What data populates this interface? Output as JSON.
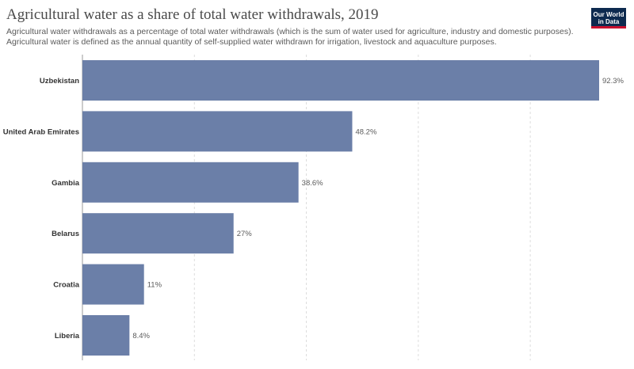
{
  "header": {
    "title": "Agricultural water as a share of total water withdrawals, 2019",
    "subtitle": "Agricultural water withdrawals as a percentage of total water withdrawals (which is the sum of water used for agriculture, industry and domestic purposes). Agricultural water is defined as the annual quantity of self-supplied water withdrawn for irrigation, livestock and aquaculture purposes.",
    "logo_line1": "Our World",
    "logo_line2": "in Data"
  },
  "colors": {
    "bar": "#6b7fa8",
    "grid": "#dddddd",
    "logo_bg": "#0d2a4f",
    "logo_accent": "#c8102e"
  },
  "chart_data": {
    "type": "bar",
    "orientation": "horizontal",
    "categories": [
      "Uzbekistan",
      "United Arab Emirates",
      "Gambia",
      "Belarus",
      "Croatia",
      "Liberia"
    ],
    "values": [
      92.3,
      48.2,
      38.6,
      27,
      11,
      8.4
    ],
    "value_labels": [
      "92.3%",
      "48.2%",
      "38.6%",
      "27%",
      "11%",
      "8.4%"
    ],
    "xlim": [
      0,
      92.3
    ],
    "grid": true,
    "xlabel": "",
    "ylabel": ""
  }
}
